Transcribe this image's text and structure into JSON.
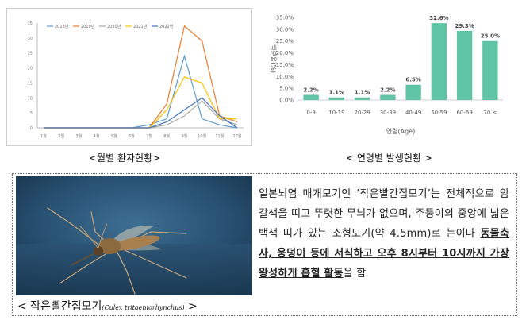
{
  "charts": {
    "chart_data": [
      {
        "type": "line",
        "title": "",
        "xlabel": "",
        "ylabel": "",
        "categories": [
          "1월",
          "2월",
          "3월",
          "4월",
          "5월",
          "6월",
          "7월",
          "8월",
          "9월",
          "10월",
          "11월",
          "12월"
        ],
        "ylim": [
          0,
          35
        ],
        "yticks": [
          0,
          5,
          10,
          15,
          20,
          25,
          30,
          35
        ],
        "series": [
          {
            "name": "2018년",
            "color": "#5b9bd5",
            "values": [
              0,
              0,
              0,
              0,
              0,
              0,
              1,
              3,
              24,
              3,
              1,
              0
            ]
          },
          {
            "name": "2019년",
            "color": "#ed7d31",
            "values": [
              0,
              0,
              0,
              0,
              0,
              0,
              0,
              8,
              34,
              29,
              4,
              2
            ]
          },
          {
            "name": "2020년",
            "color": "#a5a5a5",
            "values": [
              0,
              0,
              0,
              0,
              0,
              0,
              0,
              1,
              4,
              9,
              3,
              1
            ]
          },
          {
            "name": "2021년",
            "color": "#ffc000",
            "values": [
              0,
              0,
              0,
              0,
              0,
              0,
              0,
              6,
              17,
              15,
              3,
              3
            ]
          },
          {
            "name": "2022년",
            "color": "#4472c4",
            "values": [
              0,
              0,
              0,
              0,
              0,
              0,
              0,
              2,
              6,
              10,
              4,
              0
            ]
          }
        ],
        "legend_position": "top-left",
        "grid": false
      },
      {
        "type": "bar",
        "title": "",
        "xlabel": "연령(Age)",
        "ylabel": "백분율(%)",
        "categories": [
          "0-9",
          "10-19",
          "20-29",
          "30-39",
          "40-49",
          "50-59",
          "60-69",
          "70 ≤"
        ],
        "values": [
          2.2,
          1.1,
          1.1,
          2.2,
          6.5,
          32.6,
          29.3,
          25.0
        ],
        "data_labels": [
          "2.2%",
          "1.1%",
          "1.1%",
          "2.2%",
          "6.5%",
          "32.6%",
          "29.3%",
          "25.0%"
        ],
        "ylim": [
          0,
          35
        ],
        "ytick_labels": [
          "0.0%",
          "5.0%",
          "10.0%",
          "15.0%",
          "20.0%",
          "25.0%",
          "30.0%",
          "35.0%"
        ],
        "color": "#5fc4a3",
        "grid": false
      }
    ]
  },
  "captions": {
    "monthly": "<월별 환자현황>",
    "age": "< 연령별 발생현황 >"
  },
  "photo": {
    "caption_main": "< 작은빨간집모기",
    "caption_latin": "(Culex tritaeniorhynchus)",
    "caption_end": " >"
  },
  "description": {
    "part1": "일본뇌염 매개모기인 ‘작은빨간집모기’는 전체적으로 암갈색을 띠고 뚜렷한 무늬가 없으며, 주둥이의 중앙에 넓은 백색 띠가 있는 소형모기(약 4.5mm)로 ",
    "part2": "논이나 ",
    "highlight": "동물축사, 웅덩이 등에 서식하고 오후 8시부터 10시까지 가장 왕성하게 흡혈 활동",
    "part3": "을 함"
  }
}
